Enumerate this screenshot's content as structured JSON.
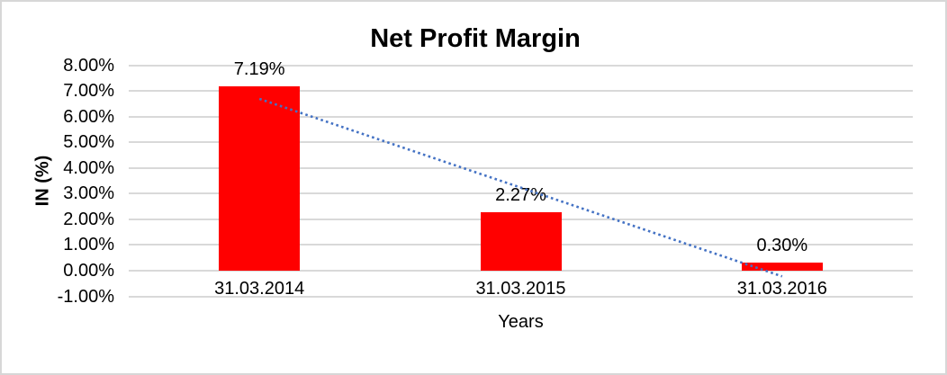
{
  "chart_data": {
    "type": "bar",
    "title": "Net Profit Margin",
    "xlabel": "Years",
    "ylabel": "IN (%)",
    "categories": [
      "31.03.2014",
      "31.03.2015",
      "31.03.2016"
    ],
    "values": [
      7.19,
      2.27,
      0.3
    ],
    "data_labels": [
      "7.19%",
      "2.27%",
      "0.30%"
    ],
    "ylim": [
      -1,
      8
    ],
    "ytick_step": 1,
    "ytick_labels": [
      "8.00%",
      "7.00%",
      "6.00%",
      "5.00%",
      "4.00%",
      "3.00%",
      "2.00%",
      "1.00%",
      "0.00%",
      "-1.00%"
    ],
    "grid": true,
    "legend": "none",
    "bar_color": "#FF0000",
    "gridline_color": "#D9D9D9",
    "text_color": "#000000",
    "trendline": {
      "type": "linear",
      "style": "dotted",
      "color": "#4472C4",
      "start_value": 6.69,
      "end_value": -0.22
    }
  }
}
